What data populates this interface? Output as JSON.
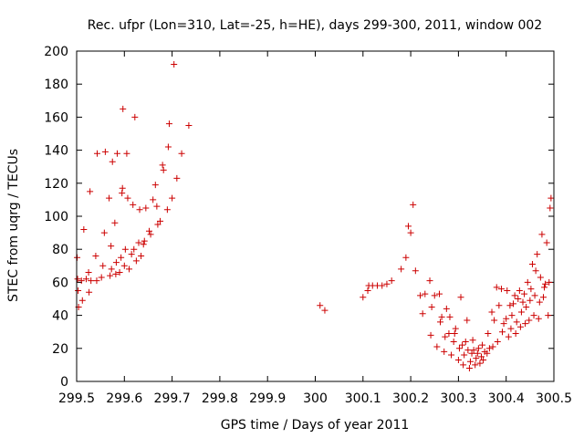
{
  "chart_data": {
    "type": "scatter",
    "title": "Rec. ufpr (Lon=310, Lat=-25, h=HE), days 299-300, 2011, window 002",
    "xlabel": "GPS time / Days of year 2011",
    "ylabel": "STEC from uqrg / TECUs",
    "xlim": [
      299.5,
      300.5
    ],
    "ylim": [
      0,
      200
    ],
    "xticks": [
      299.5,
      299.6,
      299.7,
      299.8,
      299.9,
      300,
      300.1,
      300.2,
      300.3,
      300.4,
      300.5
    ],
    "xtick_labels": [
      "299.5",
      "299.6",
      "299.7",
      "299.8",
      "299.9",
      "300",
      "300.1",
      "300.2",
      "300.3",
      "300.4",
      "300.5"
    ],
    "yticks": [
      0,
      20,
      40,
      60,
      80,
      100,
      120,
      140,
      160,
      180,
      200
    ],
    "ytick_labels": [
      "0",
      "20",
      "40",
      "60",
      "80",
      "100",
      "120",
      "140",
      "160",
      "180",
      "200"
    ],
    "marker": "+",
    "color": "#cc0000",
    "grid": false,
    "points": [
      [
        299.501,
        75
      ],
      [
        299.502,
        62
      ],
      [
        299.503,
        55
      ],
      [
        299.504,
        45
      ],
      [
        299.51,
        61
      ],
      [
        299.512,
        49
      ],
      [
        299.515,
        92
      ],
      [
        299.52,
        62
      ],
      [
        299.525,
        66
      ],
      [
        299.526,
        54
      ],
      [
        299.528,
        115
      ],
      [
        299.53,
        61
      ],
      [
        299.54,
        76
      ],
      [
        299.542,
        61
      ],
      [
        299.543,
        138
      ],
      [
        299.552,
        63
      ],
      [
        299.555,
        70
      ],
      [
        299.558,
        90
      ],
      [
        299.56,
        139
      ],
      [
        299.568,
        111
      ],
      [
        299.57,
        64
      ],
      [
        299.572,
        82
      ],
      [
        299.573,
        68
      ],
      [
        299.575,
        133
      ],
      [
        299.58,
        96
      ],
      [
        299.582,
        65
      ],
      [
        299.583,
        72
      ],
      [
        299.585,
        138
      ],
      [
        299.59,
        66
      ],
      [
        299.593,
        75
      ],
      [
        299.595,
        114
      ],
      [
        299.596,
        117
      ],
      [
        299.597,
        165
      ],
      [
        299.6,
        70
      ],
      [
        299.602,
        80
      ],
      [
        299.605,
        138
      ],
      [
        299.607,
        111
      ],
      [
        299.61,
        68
      ],
      [
        299.615,
        77
      ],
      [
        299.618,
        107
      ],
      [
        299.62,
        80
      ],
      [
        299.622,
        160
      ],
      [
        299.625,
        73
      ],
      [
        299.63,
        84
      ],
      [
        299.632,
        104
      ],
      [
        299.635,
        76
      ],
      [
        299.64,
        83
      ],
      [
        299.642,
        85
      ],
      [
        299.645,
        105
      ],
      [
        299.652,
        91
      ],
      [
        299.655,
        89
      ],
      [
        299.66,
        110
      ],
      [
        299.665,
        119
      ],
      [
        299.668,
        106
      ],
      [
        299.67,
        95
      ],
      [
        299.675,
        97
      ],
      [
        299.68,
        131
      ],
      [
        299.682,
        128
      ],
      [
        299.69,
        104
      ],
      [
        299.692,
        142
      ],
      [
        299.694,
        156
      ],
      [
        299.7,
        111
      ],
      [
        299.704,
        192
      ],
      [
        299.71,
        123
      ],
      [
        299.72,
        138
      ],
      [
        299.735,
        155
      ],
      [
        300.01,
        46
      ],
      [
        300.02,
        43
      ],
      [
        300.1,
        51
      ],
      [
        300.11,
        55
      ],
      [
        300.112,
        58
      ],
      [
        300.12,
        58
      ],
      [
        300.13,
        58
      ],
      [
        300.14,
        58
      ],
      [
        300.15,
        59
      ],
      [
        300.16,
        61
      ],
      [
        300.18,
        68
      ],
      [
        300.19,
        75
      ],
      [
        300.195,
        94
      ],
      [
        300.2,
        90
      ],
      [
        300.205,
        107
      ],
      [
        300.21,
        67
      ],
      [
        300.22,
        52
      ],
      [
        300.225,
        41
      ],
      [
        300.23,
        53
      ],
      [
        300.24,
        61
      ],
      [
        300.242,
        28
      ],
      [
        300.244,
        45
      ],
      [
        300.25,
        52
      ],
      [
        300.255,
        21
      ],
      [
        300.26,
        53
      ],
      [
        300.262,
        36
      ],
      [
        300.265,
        39
      ],
      [
        300.27,
        18
      ],
      [
        300.272,
        27
      ],
      [
        300.275,
        44
      ],
      [
        300.28,
        29
      ],
      [
        300.282,
        39
      ],
      [
        300.285,
        16
      ],
      [
        300.29,
        24
      ],
      [
        300.292,
        29
      ],
      [
        300.294,
        32
      ],
      [
        300.3,
        13
      ],
      [
        300.302,
        20
      ],
      [
        300.305,
        51
      ],
      [
        300.308,
        22
      ],
      [
        300.31,
        10
      ],
      [
        300.312,
        16
      ],
      [
        300.315,
        24
      ],
      [
        300.318,
        37
      ],
      [
        300.32,
        19
      ],
      [
        300.323,
        8
      ],
      [
        300.325,
        12
      ],
      [
        300.328,
        17
      ],
      [
        300.33,
        25
      ],
      [
        300.332,
        19
      ],
      [
        300.335,
        10
      ],
      [
        300.337,
        14
      ],
      [
        300.34,
        17
      ],
      [
        300.342,
        20
      ],
      [
        300.345,
        11
      ],
      [
        300.348,
        15
      ],
      [
        300.35,
        22
      ],
      [
        300.352,
        13
      ],
      [
        300.355,
        18
      ],
      [
        300.36,
        17
      ],
      [
        300.362,
        29
      ],
      [
        300.365,
        20
      ],
      [
        300.37,
        42
      ],
      [
        300.372,
        21
      ],
      [
        300.375,
        37
      ],
      [
        300.38,
        57
      ],
      [
        300.382,
        24
      ],
      [
        300.385,
        46
      ],
      [
        300.39,
        56
      ],
      [
        300.392,
        30
      ],
      [
        300.395,
        35
      ],
      [
        300.4,
        38
      ],
      [
        300.402,
        55
      ],
      [
        300.405,
        27
      ],
      [
        300.408,
        46
      ],
      [
        300.41,
        32
      ],
      [
        300.412,
        40
      ],
      [
        300.415,
        47
      ],
      [
        300.418,
        52
      ],
      [
        300.42,
        29
      ],
      [
        300.422,
        36
      ],
      [
        300.425,
        50
      ],
      [
        300.428,
        55
      ],
      [
        300.43,
        33
      ],
      [
        300.432,
        42
      ],
      [
        300.435,
        48
      ],
      [
        300.438,
        53
      ],
      [
        300.44,
        35
      ],
      [
        300.442,
        45
      ],
      [
        300.445,
        60
      ],
      [
        300.448,
        37
      ],
      [
        300.45,
        49
      ],
      [
        300.452,
        56
      ],
      [
        300.455,
        71
      ],
      [
        300.458,
        40
      ],
      [
        300.46,
        52
      ],
      [
        300.462,
        67
      ],
      [
        300.465,
        77
      ],
      [
        300.468,
        38
      ],
      [
        300.47,
        48
      ],
      [
        300.472,
        63
      ],
      [
        300.475,
        89
      ],
      [
        300.478,
        51
      ],
      [
        300.48,
        57
      ],
      [
        300.482,
        59
      ],
      [
        300.485,
        84
      ],
      [
        300.488,
        40
      ],
      [
        300.49,
        60
      ],
      [
        300.492,
        105
      ],
      [
        300.494,
        111
      ]
    ]
  }
}
